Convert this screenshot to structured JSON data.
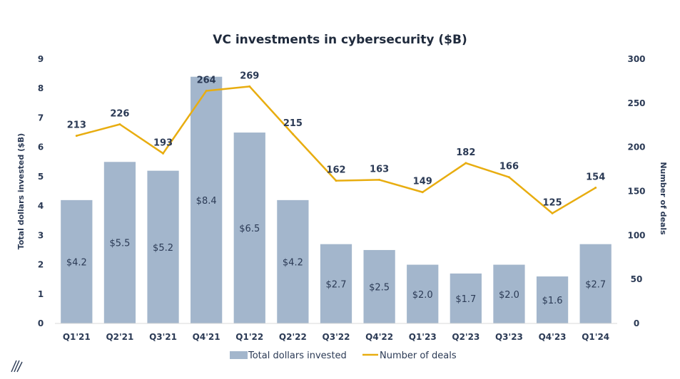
{
  "chart_data": {
    "type": "bar",
    "title": "VC investments in cybersecurity ($B)",
    "categories": [
      "Q1'21",
      "Q2'21",
      "Q3'21",
      "Q4'21",
      "Q1'22",
      "Q2'22",
      "Q3'22",
      "Q4'22",
      "Q1'23",
      "Q2'23",
      "Q3'23",
      "Q4'23",
      "Q1'24"
    ],
    "series": [
      {
        "name": "Total dollars invested",
        "type": "bar",
        "axis": "left",
        "values": [
          4.2,
          5.5,
          5.2,
          8.4,
          6.5,
          4.2,
          2.7,
          2.5,
          2.0,
          1.7,
          2.0,
          1.6,
          2.7
        ],
        "labels": [
          "$4.2",
          "$5.5",
          "$5.2",
          "$8.4",
          "$6.5",
          "$4.2",
          "$2.7",
          "$2.5",
          "$2.0",
          "$1.7",
          "$2.0",
          "$1.6",
          "$2.7"
        ],
        "color": "#a3b6cc"
      },
      {
        "name": "Number of deals",
        "type": "line",
        "axis": "right",
        "values": [
          213,
          226,
          193,
          264,
          269,
          215,
          162,
          163,
          149,
          182,
          166,
          125,
          154
        ],
        "labels": [
          "213",
          "226",
          "193",
          "264",
          "269",
          "215",
          "162",
          "163",
          "149",
          "182",
          "166",
          "125",
          "154"
        ],
        "color": "#e8ad10"
      }
    ],
    "ylabel": "Total dollars invested ($B)",
    "y2label": "Number of deals",
    "ylim": [
      0,
      9
    ],
    "y2lim": [
      0,
      300
    ],
    "yticks": [
      "0",
      "1",
      "2",
      "3",
      "4",
      "5",
      "6",
      "7",
      "8",
      "9"
    ],
    "y2ticks": [
      "0",
      "50",
      "100",
      "150",
      "200",
      "250",
      "300"
    ],
    "grid": false,
    "legend": "bottom"
  }
}
